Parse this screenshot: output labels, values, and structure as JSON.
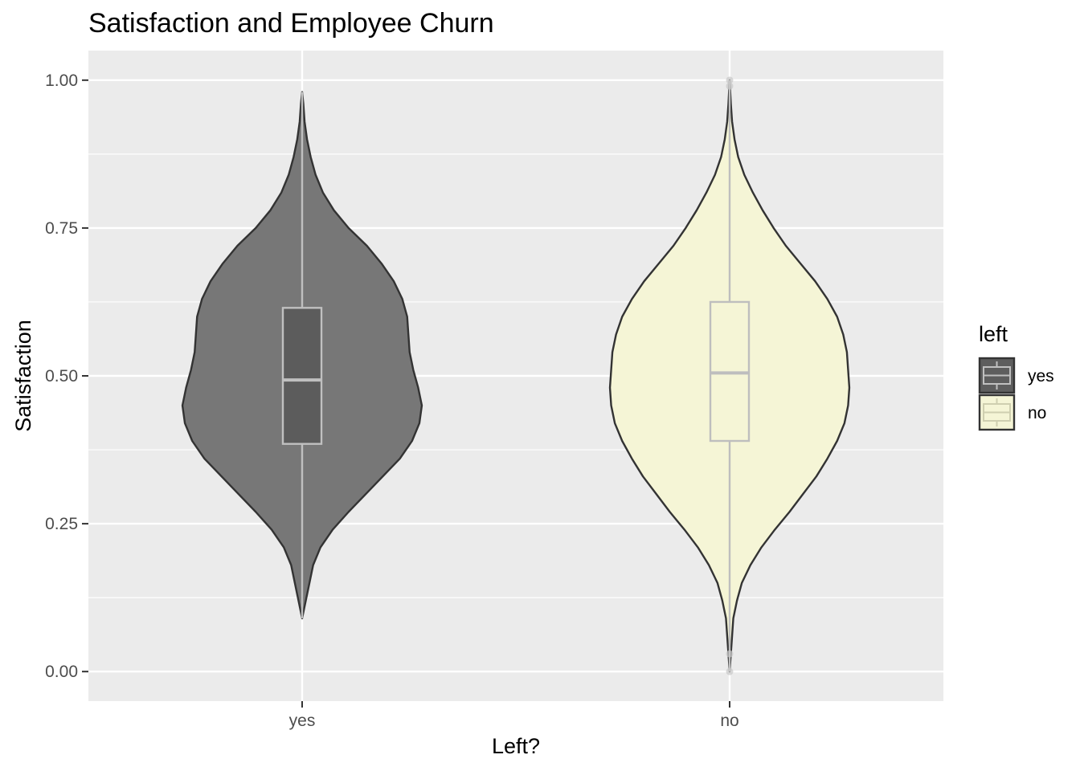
{
  "chart_data": {
    "type": "violin",
    "title": "Satisfaction and Employee Churn",
    "xlabel": "Left?",
    "ylabel": "Satisfaction",
    "categories": [
      "yes",
      "no"
    ],
    "ylim": [
      -0.05,
      1.05
    ],
    "yticks": [
      {
        "value": 0.0,
        "label": "0.00"
      },
      {
        "value": 0.25,
        "label": "0.25"
      },
      {
        "value": 0.5,
        "label": "0.50"
      },
      {
        "value": 0.75,
        "label": "0.75"
      },
      {
        "value": 1.0,
        "label": "1.00"
      }
    ],
    "grid": true,
    "legend": {
      "title": "left",
      "position": "right",
      "entries": [
        {
          "label": "yes",
          "fill": "#5e5e5e"
        },
        {
          "label": "no",
          "fill": "#f5f5d6"
        }
      ]
    },
    "series": [
      {
        "category": "yes",
        "fill": "#777777",
        "box_fill": "#5c5c5c",
        "box_stroke": "#c0c0c0",
        "min": 0.09,
        "q1": 0.385,
        "median": 0.493,
        "q3": 0.615,
        "max": 0.98,
        "outliers": [],
        "density": [
          [
            0.09,
            0.0
          ],
          [
            0.12,
            0.03
          ],
          [
            0.15,
            0.06
          ],
          [
            0.18,
            0.09
          ],
          [
            0.21,
            0.15
          ],
          [
            0.24,
            0.25
          ],
          [
            0.27,
            0.38
          ],
          [
            0.3,
            0.52
          ],
          [
            0.33,
            0.66
          ],
          [
            0.36,
            0.8
          ],
          [
            0.39,
            0.9
          ],
          [
            0.42,
            0.96
          ],
          [
            0.45,
            0.98
          ],
          [
            0.48,
            0.95
          ],
          [
            0.51,
            0.91
          ],
          [
            0.54,
            0.88
          ],
          [
            0.57,
            0.87
          ],
          [
            0.6,
            0.86
          ],
          [
            0.63,
            0.82
          ],
          [
            0.66,
            0.75
          ],
          [
            0.69,
            0.65
          ],
          [
            0.72,
            0.53
          ],
          [
            0.75,
            0.38
          ],
          [
            0.78,
            0.26
          ],
          [
            0.81,
            0.17
          ],
          [
            0.84,
            0.11
          ],
          [
            0.87,
            0.07
          ],
          [
            0.9,
            0.04
          ],
          [
            0.93,
            0.02
          ],
          [
            0.96,
            0.01
          ],
          [
            0.98,
            0.0
          ]
        ]
      },
      {
        "category": "no",
        "fill": "#f5f5d6",
        "box_fill": "#f5f5d6",
        "box_stroke": "#bebebe",
        "min": 0.0,
        "q1": 0.39,
        "median": 0.505,
        "q3": 0.625,
        "max": 1.0,
        "outliers": [
          0.0,
          0.03,
          0.99,
          1.0
        ],
        "density": [
          [
            0.0,
            0.0
          ],
          [
            0.03,
            0.01
          ],
          [
            0.06,
            0.02
          ],
          [
            0.09,
            0.03
          ],
          [
            0.12,
            0.06
          ],
          [
            0.15,
            0.1
          ],
          [
            0.18,
            0.17
          ],
          [
            0.21,
            0.26
          ],
          [
            0.24,
            0.37
          ],
          [
            0.27,
            0.49
          ],
          [
            0.3,
            0.6
          ],
          [
            0.33,
            0.71
          ],
          [
            0.36,
            0.8
          ],
          [
            0.39,
            0.88
          ],
          [
            0.42,
            0.94
          ],
          [
            0.45,
            0.97
          ],
          [
            0.48,
            0.98
          ],
          [
            0.51,
            0.97
          ],
          [
            0.54,
            0.96
          ],
          [
            0.57,
            0.93
          ],
          [
            0.6,
            0.88
          ],
          [
            0.63,
            0.8
          ],
          [
            0.66,
            0.7
          ],
          [
            0.69,
            0.58
          ],
          [
            0.72,
            0.46
          ],
          [
            0.75,
            0.36
          ],
          [
            0.78,
            0.27
          ],
          [
            0.81,
            0.19
          ],
          [
            0.84,
            0.12
          ],
          [
            0.87,
            0.07
          ],
          [
            0.9,
            0.04
          ],
          [
            0.93,
            0.02
          ],
          [
            0.96,
            0.01
          ],
          [
            1.0,
            0.0
          ]
        ]
      }
    ]
  }
}
